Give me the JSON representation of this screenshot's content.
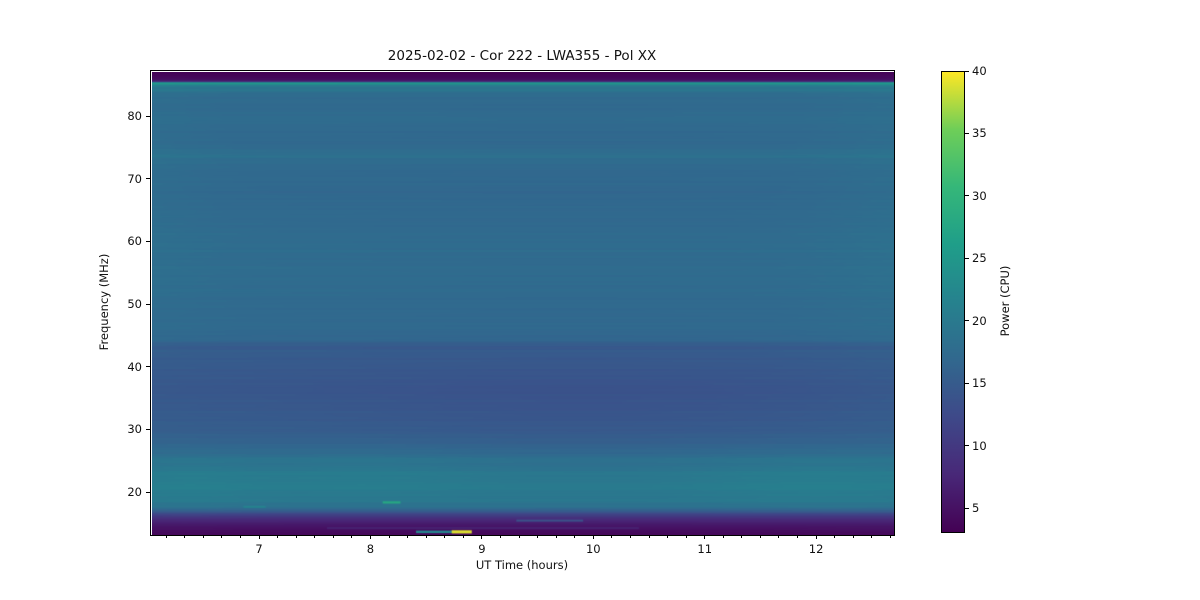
{
  "chart_data": {
    "type": "heatmap",
    "title": "2025-02-02 - Cor 222 - LWA355 - Pol XX",
    "xlabel": "UT Time (hours)",
    "ylabel": "Frequency (MHz)",
    "colorbar_label": "Power (CPU)",
    "x_ticks": [
      7,
      8,
      9,
      10,
      11,
      12
    ],
    "x_minor_step_hours": 0.1666667,
    "y_ticks": [
      20,
      30,
      40,
      50,
      60,
      70,
      80
    ],
    "colorbar_ticks": [
      5,
      10,
      15,
      20,
      25,
      30,
      35,
      40
    ],
    "x_range_hours": [
      6.03,
      12.69
    ],
    "y_range_mhz": [
      13.3,
      87.2
    ],
    "power_range_cpu": [
      3,
      40
    ],
    "grid": false,
    "legend": "colorbar-right",
    "colormap": {
      "name": "viridis",
      "stops": [
        {
          "t": 0.0,
          "color": "#440154"
        },
        {
          "t": 0.125,
          "color": "#482878"
        },
        {
          "t": 0.25,
          "color": "#3e4989"
        },
        {
          "t": 0.375,
          "color": "#31688e"
        },
        {
          "t": 0.5,
          "color": "#26828e"
        },
        {
          "t": 0.625,
          "color": "#1f9e89"
        },
        {
          "t": 0.75,
          "color": "#35b779"
        },
        {
          "t": 0.875,
          "color": "#6ece58"
        },
        {
          "t": 1.0,
          "color": "#fde725"
        }
      ]
    },
    "spectrum_profile_mhz_power": [
      [
        87.2,
        3.0
      ],
      [
        86.6,
        3.4
      ],
      [
        86.0,
        4.2
      ],
      [
        85.7,
        7.0
      ],
      [
        85.45,
        26.5
      ],
      [
        85.1,
        21.0
      ],
      [
        84.6,
        18.6
      ],
      [
        83.5,
        17.6
      ],
      [
        82.0,
        17.3
      ],
      [
        80.0,
        17.6
      ],
      [
        78.0,
        17.3
      ],
      [
        76.0,
        17.1
      ],
      [
        74.0,
        17.8
      ],
      [
        72.0,
        17.3
      ],
      [
        70.0,
        17.3
      ],
      [
        68.0,
        17.1
      ],
      [
        66.0,
        17.4
      ],
      [
        64.0,
        17.2
      ],
      [
        62.0,
        17.5
      ],
      [
        60.0,
        17.6
      ],
      [
        58.0,
        17.4
      ],
      [
        56.0,
        17.7
      ],
      [
        54.0,
        17.8
      ],
      [
        52.0,
        17.6
      ],
      [
        50.0,
        17.4
      ],
      [
        48.0,
        17.2
      ],
      [
        46.0,
        17.0
      ],
      [
        44.5,
        16.8
      ],
      [
        43.8,
        15.4
      ],
      [
        42.0,
        15.1
      ],
      [
        40.0,
        14.9
      ],
      [
        38.0,
        14.7
      ],
      [
        36.0,
        14.6
      ],
      [
        34.0,
        14.7
      ],
      [
        32.0,
        14.9
      ],
      [
        30.0,
        15.3
      ],
      [
        28.0,
        16.2
      ],
      [
        26.5,
        17.3
      ],
      [
        25.0,
        18.4
      ],
      [
        23.5,
        19.3
      ],
      [
        22.0,
        19.9
      ],
      [
        20.5,
        19.8
      ],
      [
        19.5,
        19.4
      ],
      [
        18.5,
        19.0
      ],
      [
        17.8,
        18.2
      ],
      [
        17.2,
        15.5
      ],
      [
        16.6,
        11.5
      ],
      [
        16.0,
        8.5
      ],
      [
        15.3,
        6.5
      ],
      [
        14.6,
        5.2
      ],
      [
        14.0,
        4.4
      ],
      [
        13.6,
        4.0
      ],
      [
        13.3,
        3.7
      ]
    ],
    "texture_stripes": [
      {
        "mhz": 84.3,
        "dp": 0.9
      },
      {
        "mhz": 79.5,
        "dp": 0.5
      },
      {
        "mhz": 73.8,
        "dp": 0.9
      },
      {
        "mhz": 71.0,
        "dp": -0.5
      },
      {
        "mhz": 64.3,
        "dp": 0.5
      },
      {
        "mhz": 58.6,
        "dp": 0.5
      },
      {
        "mhz": 52.2,
        "dp": 0.4
      },
      {
        "mhz": 46.8,
        "dp": 0.4
      },
      {
        "mhz": 43.2,
        "dp": -0.5
      },
      {
        "mhz": 36.5,
        "dp": -0.3
      },
      {
        "mhz": 25.4,
        "dp": 0.9
      },
      {
        "mhz": 23.0,
        "dp": 0.5
      },
      {
        "mhz": 20.9,
        "dp": 0.6
      },
      {
        "mhz": 18.8,
        "dp": 0.5
      }
    ],
    "texture_noise": {
      "amp1": 0.22,
      "f1": 7.1,
      "amp2": 0.13,
      "f2": 19.3,
      "amp3": 0.09,
      "f3": 41.0
    },
    "time_bumps": [
      {
        "hour": 6.35,
        "sigma_h": 0.45,
        "mhz": 22.0,
        "sigma_mhz": 3.5,
        "dp": 0.9
      },
      {
        "hour": 7.95,
        "sigma_h": 0.7,
        "mhz": 23.5,
        "sigma_mhz": 3.0,
        "dp": 0.8
      },
      {
        "hour": 11.9,
        "sigma_h": 0.7,
        "mhz": 22.5,
        "sigma_mhz": 3.5,
        "dp": 0.9
      },
      {
        "hour": 9.9,
        "sigma_h": 1.7,
        "mhz": 33.5,
        "sigma_mhz": 5.5,
        "dp": -0.8
      },
      {
        "hour": 9.7,
        "sigma_h": 1.8,
        "mhz": 60.0,
        "sigma_mhz": 16.0,
        "dp": -0.3
      },
      {
        "hour": 12.8,
        "sigma_h": 0.5,
        "mhz": 65.0,
        "sigma_mhz": 25.0,
        "dp": 0.7
      },
      {
        "hour": 6.0,
        "sigma_h": 0.35,
        "mhz": 70.0,
        "sigma_mhz": 20.0,
        "dp": 0.5
      }
    ],
    "transient_features": [
      {
        "name": "green-dash",
        "hours": [
          8.1,
          8.26
        ],
        "mhz": 18.5,
        "power": 28.0,
        "height_mhz": 0.35
      },
      {
        "name": "teal-dash",
        "hours": [
          8.4,
          8.73
        ],
        "mhz": 13.8,
        "power": 22.0,
        "height_mhz": 0.4
      },
      {
        "name": "yellow-dash",
        "hours": [
          8.72,
          8.9
        ],
        "mhz": 13.8,
        "power": 39.0,
        "height_mhz": 0.5
      },
      {
        "name": "cyan-streak",
        "hours": [
          9.3,
          9.9
        ],
        "mhz": 15.6,
        "power": 13.5,
        "height_mhz": 0.3
      },
      {
        "name": "lavender-line",
        "hours": [
          7.6,
          10.4
        ],
        "mhz": 14.4,
        "power": 6.8,
        "height_mhz": 0.3
      },
      {
        "name": "teal-edge-segment",
        "hours": [
          6.85,
          7.05
        ],
        "mhz": 17.8,
        "power": 21.5,
        "height_mhz": 0.3
      }
    ]
  }
}
